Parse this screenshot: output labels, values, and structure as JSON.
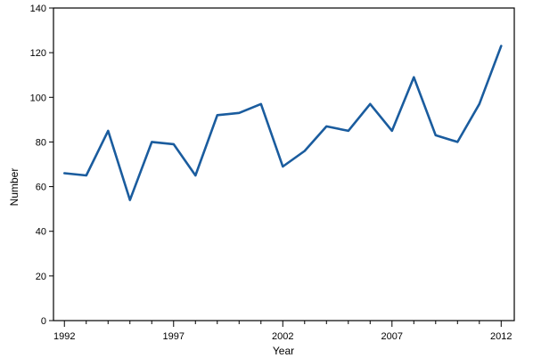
{
  "chart_data": {
    "type": "line",
    "title": "",
    "xlabel": "Year",
    "ylabel": "Number",
    "xlim": [
      1991.5,
      2012.6
    ],
    "ylim": [
      0,
      140
    ],
    "xticks": [
      1992,
      1997,
      2002,
      2007,
      2012
    ],
    "xtick_labels": [
      "1992",
      "1997",
      "2002",
      "2007",
      "2012"
    ],
    "yticks": [
      0,
      20,
      40,
      60,
      80,
      100,
      120,
      140
    ],
    "ytick_labels": [
      "0",
      "20",
      "40",
      "60",
      "80",
      "100",
      "120",
      "140"
    ],
    "grid": false,
    "legend": "none",
    "series": [
      {
        "color": "#1a5c9e",
        "x": [
          1992,
          1993,
          1994,
          1995,
          1996,
          1997,
          1998,
          1999,
          2000,
          2001,
          2002,
          2003,
          2004,
          2005,
          2006,
          2007,
          2008,
          2009,
          2010,
          2011,
          2012
        ],
        "y": [
          66,
          65,
          85,
          54,
          80,
          79,
          65,
          92,
          93,
          97,
          69,
          76,
          87,
          85,
          97,
          85,
          109,
          83,
          80,
          97,
          123
        ]
      }
    ]
  }
}
